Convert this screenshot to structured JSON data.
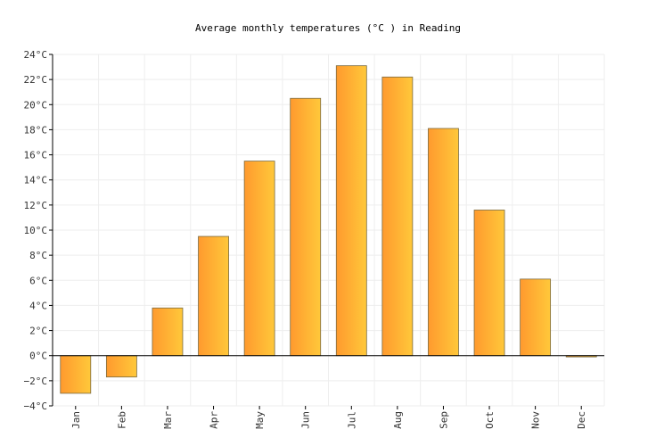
{
  "chart_data": {
    "type": "bar",
    "title": "Average monthly temperatures (°C ) in Reading",
    "xlabel": "",
    "ylabel": "",
    "categories": [
      "Jan",
      "Feb",
      "Mar",
      "Apr",
      "May",
      "Jun",
      "Jul",
      "Aug",
      "Sep",
      "Oct",
      "Nov",
      "Dec"
    ],
    "values": [
      -3.0,
      -1.7,
      3.8,
      9.5,
      15.5,
      20.5,
      23.1,
      22.2,
      18.1,
      11.6,
      6.1,
      -0.1
    ],
    "ylim": [
      -4,
      24
    ],
    "ytick_step": 2,
    "y_tick_labels": [
      "−4°C",
      "−2°C",
      "0°C",
      "2°C",
      "4°C",
      "6°C",
      "8°C",
      "10°C",
      "12°C",
      "14°C",
      "16°C",
      "18°C",
      "20°C",
      "22°C",
      "24°C"
    ],
    "grid": true,
    "legend": "none",
    "colors": {
      "bar_start": "#ff9a2e",
      "bar_end": "#ffc83a",
      "bar_stroke": "#7a6a40",
      "grid": "#eeeeee",
      "axis": "#000000"
    }
  }
}
